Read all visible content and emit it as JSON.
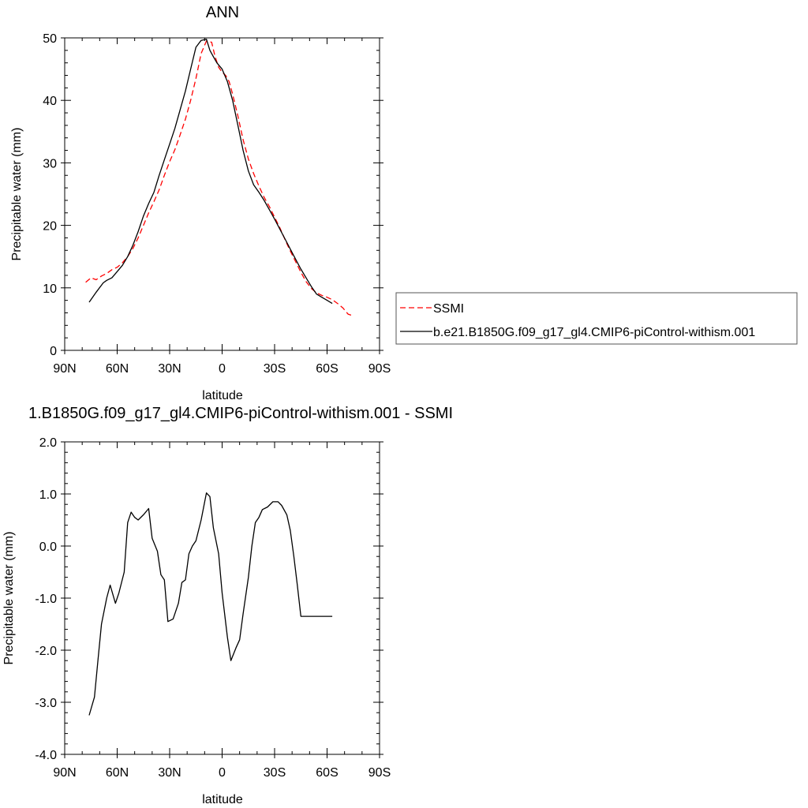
{
  "chart_data": [
    {
      "type": "line",
      "title": "ANN",
      "xlabel": "latitude",
      "ylabel": "Precipitable water (mm)",
      "xlim": [
        90,
        -90
      ],
      "ylim": [
        0,
        50
      ],
      "x_ticks": [
        90,
        60,
        30,
        0,
        -30,
        -60,
        -90
      ],
      "x_tick_labels": [
        "90N",
        "60N",
        "30N",
        "0",
        "30S",
        "60S",
        "90S"
      ],
      "y_ticks": [
        0,
        10,
        20,
        30,
        40,
        50
      ],
      "y_tick_labels": [
        "0",
        "10",
        "20",
        "30",
        "40",
        "50"
      ],
      "grid": false,
      "legend": "right",
      "series": [
        {
          "name": "SSMI",
          "style": "dashed",
          "color": "#ff0000",
          "x": [
            78,
            75,
            72,
            69,
            66,
            63,
            60,
            57,
            54,
            51,
            48,
            45,
            42,
            39,
            36,
            33,
            30,
            27,
            24,
            21,
            18,
            15,
            12,
            9,
            6,
            4,
            2,
            0,
            -2,
            -4,
            -6,
            -9,
            -12,
            -15,
            -18,
            -21,
            -24,
            -27,
            -30,
            -33,
            -36,
            -39,
            -42,
            -45,
            -48,
            -51,
            -54,
            -57,
            -60,
            -63,
            -66,
            -69,
            -72,
            -75
          ],
          "y": [
            10.9,
            11.6,
            11.3,
            11.9,
            12.3,
            12.9,
            13.3,
            14.0,
            15.0,
            16.3,
            18.0,
            20.0,
            22.0,
            23.8,
            25.7,
            28.0,
            30.2,
            32.1,
            34.5,
            37.0,
            40.0,
            43.5,
            47.5,
            49.5,
            49.3,
            47.0,
            45.3,
            44.5,
            44.0,
            43.0,
            41.0,
            37.5,
            33.7,
            30.6,
            28.3,
            26.3,
            24.5,
            23.0,
            21.3,
            19.6,
            17.7,
            15.9,
            14.2,
            12.5,
            11.0,
            9.9,
            9.2,
            8.8,
            8.5,
            8.1,
            7.5,
            6.8,
            5.8,
            5.5
          ]
        },
        {
          "name": "b.e21.B1850G.f09_g17_gl4.CMIP6-piControl-withism.001",
          "style": "solid",
          "color": "#000000",
          "x": [
            76,
            72,
            68,
            66,
            63,
            60,
            57,
            54,
            51,
            48,
            45,
            42,
            39,
            36,
            33,
            30,
            27,
            24,
            21,
            18,
            15,
            12,
            9,
            7,
            5,
            3,
            0,
            -3,
            -6,
            -9,
            -12,
            -15,
            -18,
            -21,
            -24,
            -27,
            -30,
            -33,
            -36,
            -39,
            -42,
            -45,
            -48,
            -51,
            -54,
            -57,
            -60,
            -63
          ],
          "y": [
            7.7,
            9.3,
            10.8,
            11.2,
            11.6,
            12.6,
            13.6,
            15.0,
            16.8,
            19.0,
            21.5,
            23.5,
            25.3,
            28.0,
            30.5,
            33.0,
            35.5,
            38.5,
            41.5,
            45.0,
            48.5,
            49.6,
            49.8,
            48.0,
            47.0,
            46.0,
            45.0,
            43.0,
            40.0,
            36.0,
            32.0,
            28.7,
            26.5,
            25.3,
            24.0,
            22.5,
            21.0,
            19.4,
            17.8,
            16.2,
            14.6,
            13.0,
            11.6,
            10.2,
            9.0,
            8.5,
            8.0,
            7.5
          ]
        }
      ]
    },
    {
      "type": "line",
      "title": "1.B1850G.f09_g17_gl4.CMIP6-piControl-withism.001 - SSMI",
      "xlabel": "latitude",
      "ylabel": "Precipitable water (mm)",
      "xlim": [
        90,
        -90
      ],
      "ylim": [
        -4.0,
        2.0
      ],
      "x_ticks": [
        90,
        60,
        30,
        0,
        -30,
        -60,
        -90
      ],
      "x_tick_labels": [
        "90N",
        "60N",
        "30N",
        "0",
        "30S",
        "60S",
        "90S"
      ],
      "y_ticks": [
        -4.0,
        -3.0,
        -2.0,
        -1.0,
        0.0,
        1.0,
        2.0
      ],
      "y_tick_labels": [
        "-4.0",
        "-3.0",
        "-2.0",
        "-1.0",
        "0.0",
        "1.0",
        "2.0"
      ],
      "grid": false,
      "series": [
        {
          "style": "solid",
          "color": "#000000",
          "x": [
            76,
            73,
            71,
            69,
            66,
            64,
            61,
            59,
            56,
            54,
            52,
            50,
            48,
            45,
            42,
            40,
            37,
            35,
            33,
            31,
            28,
            25,
            23,
            21,
            19,
            17,
            15,
            12,
            9,
            7,
            5,
            2,
            0,
            -3,
            -5,
            -8,
            -10,
            -12,
            -15,
            -17,
            -19,
            -21,
            -23,
            -26,
            -29,
            -32,
            -34,
            -37,
            -39,
            -41,
            -43,
            -45,
            -48,
            -50,
            -53,
            -56,
            -59,
            -61,
            -63
          ],
          "y": [
            -3.25,
            -2.9,
            -2.2,
            -1.5,
            -1.0,
            -0.75,
            -1.1,
            -0.9,
            -0.5,
            0.45,
            0.65,
            0.55,
            0.5,
            0.6,
            0.72,
            0.15,
            -0.1,
            -0.55,
            -0.65,
            -1.45,
            -1.4,
            -1.1,
            -0.7,
            -0.65,
            -0.15,
            0.0,
            0.1,
            0.5,
            1.02,
            0.95,
            0.35,
            -0.15,
            -0.9,
            -1.75,
            -2.2,
            -1.95,
            -1.8,
            -1.3,
            -0.6,
            0.0,
            0.45,
            0.55,
            0.7,
            0.75,
            0.85,
            0.85,
            0.78,
            0.6,
            0.3,
            -0.2,
            -0.75,
            -1.35,
            -1.35,
            -1.35,
            -1.35,
            -1.35,
            -1.35,
            -1.35,
            -1.35
          ]
        }
      ]
    }
  ]
}
